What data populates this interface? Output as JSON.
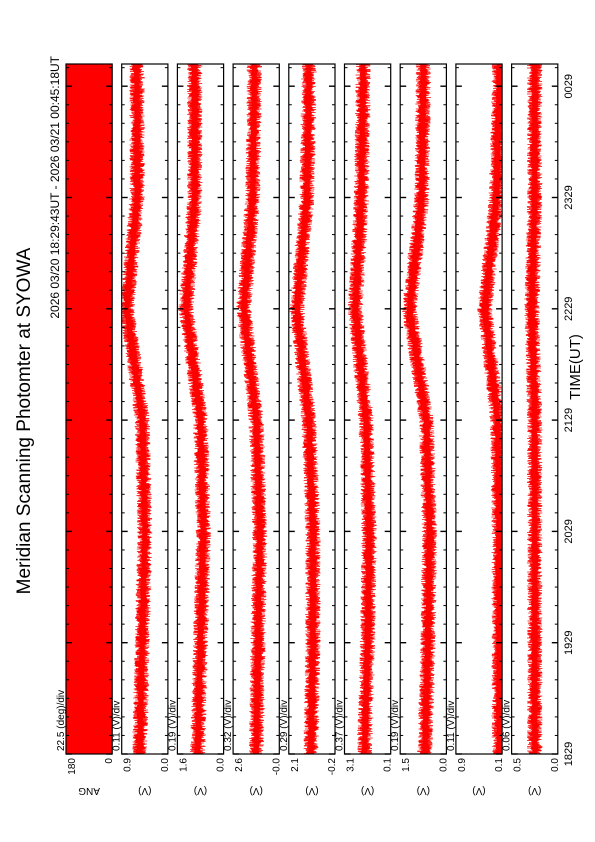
{
  "page": {
    "title": "Meridian Scanning Photomter at SYOWA",
    "time_range": "2026 03/20 18:29:43UT - 2026 03/21 00:45:18UT",
    "xlabel": "TIME(UT)",
    "trace_color": "#ff0000"
  },
  "chart_data": [
    {
      "type": "line",
      "panel": "ANG",
      "ylabel": "ANG",
      "ylim": [
        0,
        180
      ],
      "yticks": [
        "180",
        "0"
      ],
      "scale": "22.5 (deg)/div",
      "fill": "solid"
    },
    {
      "type": "line",
      "panel": "ch1",
      "ylabel": "(V)",
      "ylim": [
        0.0,
        0.9
      ],
      "yticks": [
        "0.9",
        "0.0"
      ],
      "scale": "0.11 (V)/div",
      "series": [
        {
          "x": [
            "1829",
            "1929",
            "2029",
            "2129",
            "2229",
            "2329",
            "0029"
          ],
          "values": [
            0.55,
            0.5,
            0.45,
            0.5,
            0.8,
            0.6,
            0.6
          ]
        }
      ]
    },
    {
      "type": "line",
      "panel": "ch2",
      "ylabel": "(V)",
      "ylim": [
        0.0,
        1.6
      ],
      "yticks": [
        "1.6",
        "0.0"
      ],
      "scale": "0.19 (V)/div",
      "series": [
        {
          "x": [
            "1829",
            "1929",
            "2029",
            "2129",
            "2229",
            "2329",
            "0029"
          ],
          "values": [
            0.9,
            0.8,
            0.7,
            0.8,
            1.3,
            1.0,
            1.0
          ]
        }
      ]
    },
    {
      "type": "line",
      "panel": "ch3",
      "ylabel": "(V)",
      "ylim": [
        0.0,
        2.6
      ],
      "yticks": [
        "2.6",
        "-0.0"
      ],
      "scale": "0.32 (V)/div",
      "series": [
        {
          "x": [
            "1829",
            "1929",
            "2029",
            "2129",
            "2229",
            "2329",
            "0029"
          ],
          "values": [
            1.3,
            1.2,
            1.1,
            1.3,
            2.0,
            1.5,
            1.4
          ]
        }
      ]
    },
    {
      "type": "line",
      "panel": "ch4",
      "ylabel": "(V)",
      "ylim": [
        -0.2,
        2.1
      ],
      "yticks": [
        "2.1",
        "-0.2"
      ],
      "scale": "0.29 (V)/div",
      "series": [
        {
          "x": [
            "1829",
            "1929",
            "2029",
            "2129",
            "2229",
            "2329",
            "0029"
          ],
          "values": [
            1.0,
            0.9,
            0.9,
            1.1,
            1.7,
            1.2,
            1.1
          ]
        }
      ]
    },
    {
      "type": "line",
      "panel": "ch5",
      "ylabel": "(V)",
      "ylim": [
        0.1,
        3.1
      ],
      "yticks": [
        "3.1",
        "0.1"
      ],
      "scale": "0.37 (V)/div",
      "series": [
        {
          "x": [
            "1829",
            "1929",
            "2029",
            "2129",
            "2229",
            "2329",
            "0029"
          ],
          "values": [
            1.8,
            1.6,
            1.5,
            1.7,
            2.4,
            2.0,
            1.9
          ]
        }
      ]
    },
    {
      "type": "line",
      "panel": "ch6",
      "ylabel": "(V)",
      "ylim": [
        0.0,
        1.5
      ],
      "yticks": [
        "1.5",
        "0.0"
      ],
      "scale": "0.19 (V)/div",
      "series": [
        {
          "x": [
            "1829",
            "1929",
            "2029",
            "2129",
            "2229",
            "2329",
            "0029"
          ],
          "values": [
            0.7,
            0.6,
            0.55,
            0.65,
            1.2,
            0.8,
            0.75
          ]
        }
      ]
    },
    {
      "type": "line",
      "panel": "ch7",
      "ylabel": "(V)",
      "ylim": [
        0.1,
        0.9
      ],
      "yticks": [
        "0.9",
        "0.1"
      ],
      "scale": "0.11 (V)/div",
      "series": [
        {
          "x": [
            "1829",
            "1929",
            "2029",
            "2129",
            "2229",
            "2329",
            "0029"
          ],
          "values": [
            0.15,
            0.15,
            0.15,
            0.18,
            0.4,
            0.2,
            0.15
          ]
        }
      ]
    },
    {
      "type": "line",
      "panel": "ch8",
      "ylabel": "(V)",
      "ylim": [
        0.0,
        0.5
      ],
      "yticks": [
        "0.5",
        "0.0"
      ],
      "scale": "0.06 (V)/div",
      "series": [
        {
          "x": [
            "1829",
            "1929",
            "2029",
            "2129",
            "2229",
            "2329",
            "0029"
          ],
          "values": [
            0.25,
            0.25,
            0.25,
            0.25,
            0.28,
            0.25,
            0.25
          ]
        }
      ]
    }
  ],
  "xticks": [
    "1829",
    "1929",
    "2029",
    "2129",
    "2229",
    "2329",
    "0029"
  ]
}
